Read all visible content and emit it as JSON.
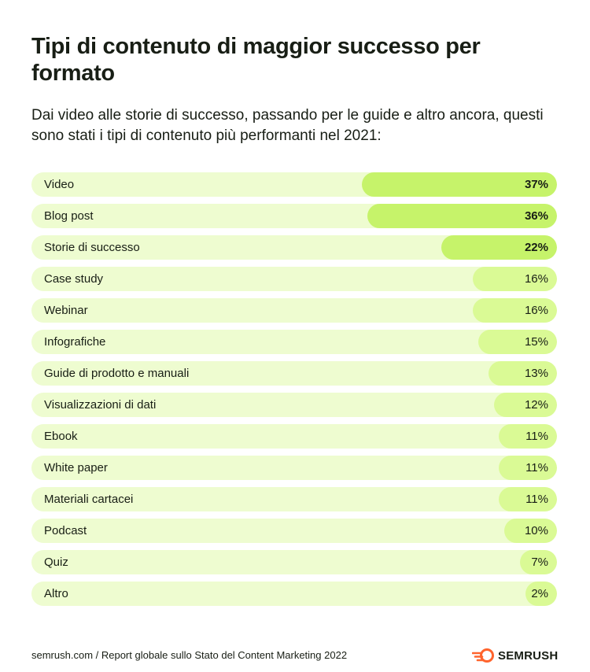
{
  "header": {
    "title": "Tipi di contenuto di maggior successo per formato",
    "subtitle": "Dai video alle storie di successo, passando per le guide e altro ancora, questi sono stati i tipi di contenuto più performanti nel 2021:"
  },
  "chart_data": {
    "type": "bar",
    "orientation": "horizontal",
    "title": "Tipi di contenuto di maggior successo per formato",
    "categories": [
      "Video",
      "Blog post",
      "Storie di successo",
      "Case study",
      "Webinar",
      "Infografiche",
      "Guide di prodotto e manuali",
      "Visualizzazioni di dati",
      "Ebook",
      "White paper",
      "Materiali cartacei",
      "Podcast",
      "Quiz",
      "Altro"
    ],
    "values": [
      37,
      36,
      22,
      16,
      16,
      15,
      13,
      12,
      11,
      11,
      11,
      10,
      7,
      2
    ],
    "labels": [
      "37%",
      "36%",
      "22%",
      "16%",
      "16%",
      "15%",
      "13%",
      "12%",
      "11%",
      "11%",
      "11%",
      "10%",
      "7%",
      "2%"
    ],
    "unit": "%",
    "highlight_count": 3,
    "colors": {
      "track": "#eefcd0",
      "bar": "#dafa95",
      "bar_highlight": "#c6f36a"
    }
  },
  "footer": {
    "source": "semrush.com / Report globale sullo Stato del Content Marketing 2022"
  },
  "brand": {
    "name": "SEMRUSH",
    "color": "#ff642d",
    "icon": "semrush-fireball-icon"
  }
}
